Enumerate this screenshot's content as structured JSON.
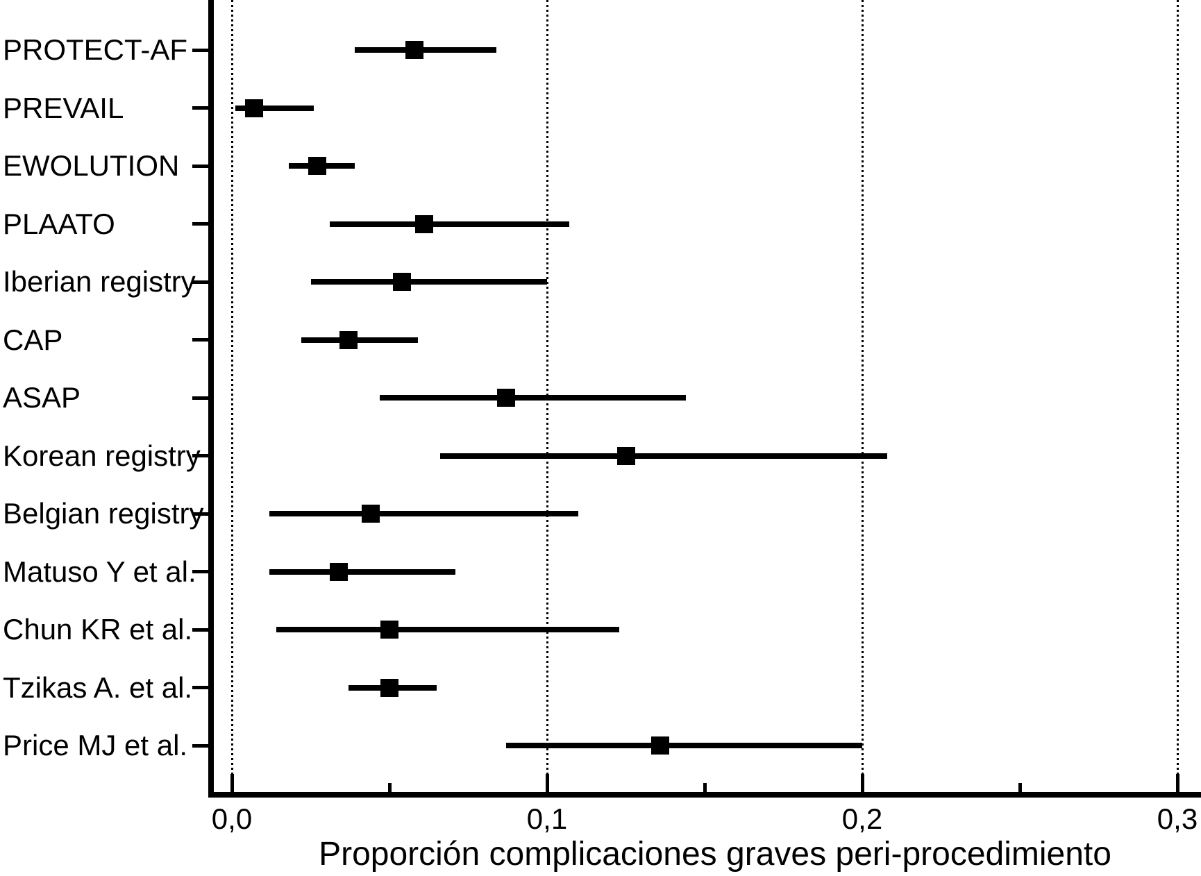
{
  "figure": {
    "background": "#ffffff",
    "ink_color": "#000000"
  },
  "chart_data": {
    "type": "scatter",
    "subtype": "forest-plot",
    "title": "",
    "xlabel": "Proporción complicaciones graves peri-procedimiento",
    "ylabel": "",
    "xlim": [
      -0.0075,
      0.3075
    ],
    "x_ticks": [
      0,
      0.1,
      0.2,
      0.3
    ],
    "x_tick_labels": [
      "0,0",
      "0,1",
      "0,2",
      "0,3"
    ],
    "x_minor_ticks": [
      0.05,
      0.15,
      0.25
    ],
    "gridlines": {
      "orientation": "vertical",
      "style": "dotted",
      "at": [
        0,
        0.1,
        0.2,
        0.3
      ]
    },
    "legend": "none",
    "marker": "filled-square",
    "studies": [
      {
        "name": "PROTECT-AF",
        "estimate": 0.058,
        "ci_low": 0.039,
        "ci_high": 0.084
      },
      {
        "name": "PREVAIL",
        "estimate": 0.007,
        "ci_low": 0.001,
        "ci_high": 0.026
      },
      {
        "name": "EWOLUTION",
        "estimate": 0.027,
        "ci_low": 0.018,
        "ci_high": 0.039
      },
      {
        "name": "PLAATO",
        "estimate": 0.061,
        "ci_low": 0.031,
        "ci_high": 0.107
      },
      {
        "name": "Iberian registry",
        "estimate": 0.054,
        "ci_low": 0.025,
        "ci_high": 0.1
      },
      {
        "name": "CAP",
        "estimate": 0.037,
        "ci_low": 0.022,
        "ci_high": 0.059
      },
      {
        "name": "ASAP",
        "estimate": 0.087,
        "ci_low": 0.047,
        "ci_high": 0.144
      },
      {
        "name": "Korean registry",
        "estimate": 0.125,
        "ci_low": 0.066,
        "ci_high": 0.208
      },
      {
        "name": "Belgian registry",
        "estimate": 0.044,
        "ci_low": 0.012,
        "ci_high": 0.11
      },
      {
        "name": "Matuso Y et al.",
        "estimate": 0.034,
        "ci_low": 0.012,
        "ci_high": 0.071
      },
      {
        "name": "Chun KR et al.",
        "estimate": 0.05,
        "ci_low": 0.014,
        "ci_high": 0.123
      },
      {
        "name": "Tzikas A. et al.",
        "estimate": 0.05,
        "ci_low": 0.037,
        "ci_high": 0.065
      },
      {
        "name": "Price MJ et al.",
        "estimate": 0.136,
        "ci_low": 0.087,
        "ci_high": 0.2
      }
    ]
  }
}
